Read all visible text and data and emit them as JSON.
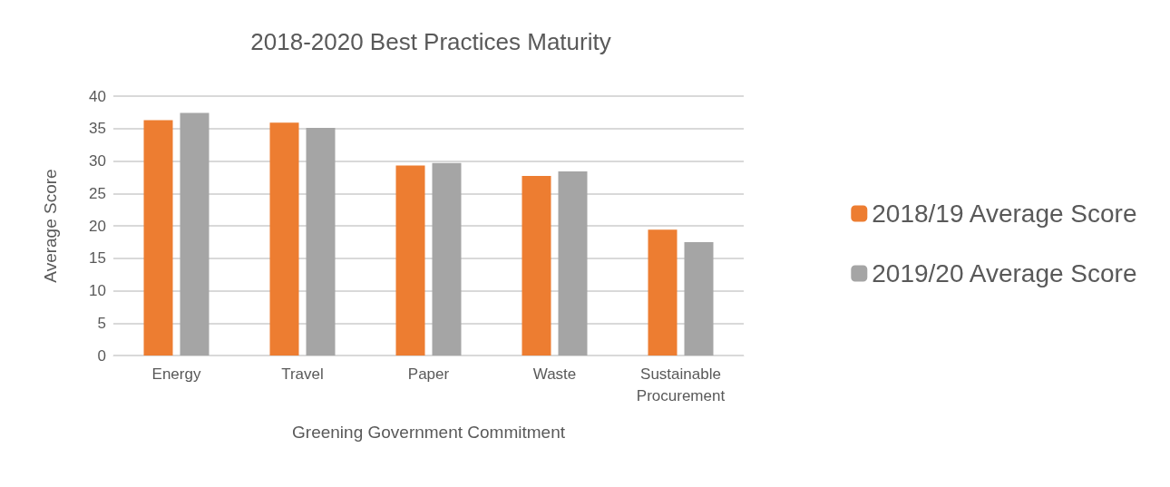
{
  "chart_data": {
    "type": "bar",
    "title": "2018-2020 Best Practices Maturity",
    "xlabel": "Greening Government Commitment",
    "ylabel": "Average Score",
    "categories": [
      "Energy",
      "Travel",
      "Paper",
      "Waste",
      "Sustainable\nProcurement"
    ],
    "series": [
      {
        "name": "2018/19 Average Score",
        "color": "#ed7d31",
        "values": [
          36.3,
          35.9,
          29.3,
          27.7,
          19.4
        ]
      },
      {
        "name": "2019/20 Average Score",
        "color": "#a5a5a5",
        "values": [
          37.4,
          35.1,
          29.7,
          28.4,
          17.5
        ]
      }
    ],
    "ylim": [
      0,
      40
    ],
    "yticks": [
      0,
      5,
      10,
      15,
      20,
      25,
      30,
      35,
      40
    ],
    "grid": "y",
    "legend": "right"
  }
}
